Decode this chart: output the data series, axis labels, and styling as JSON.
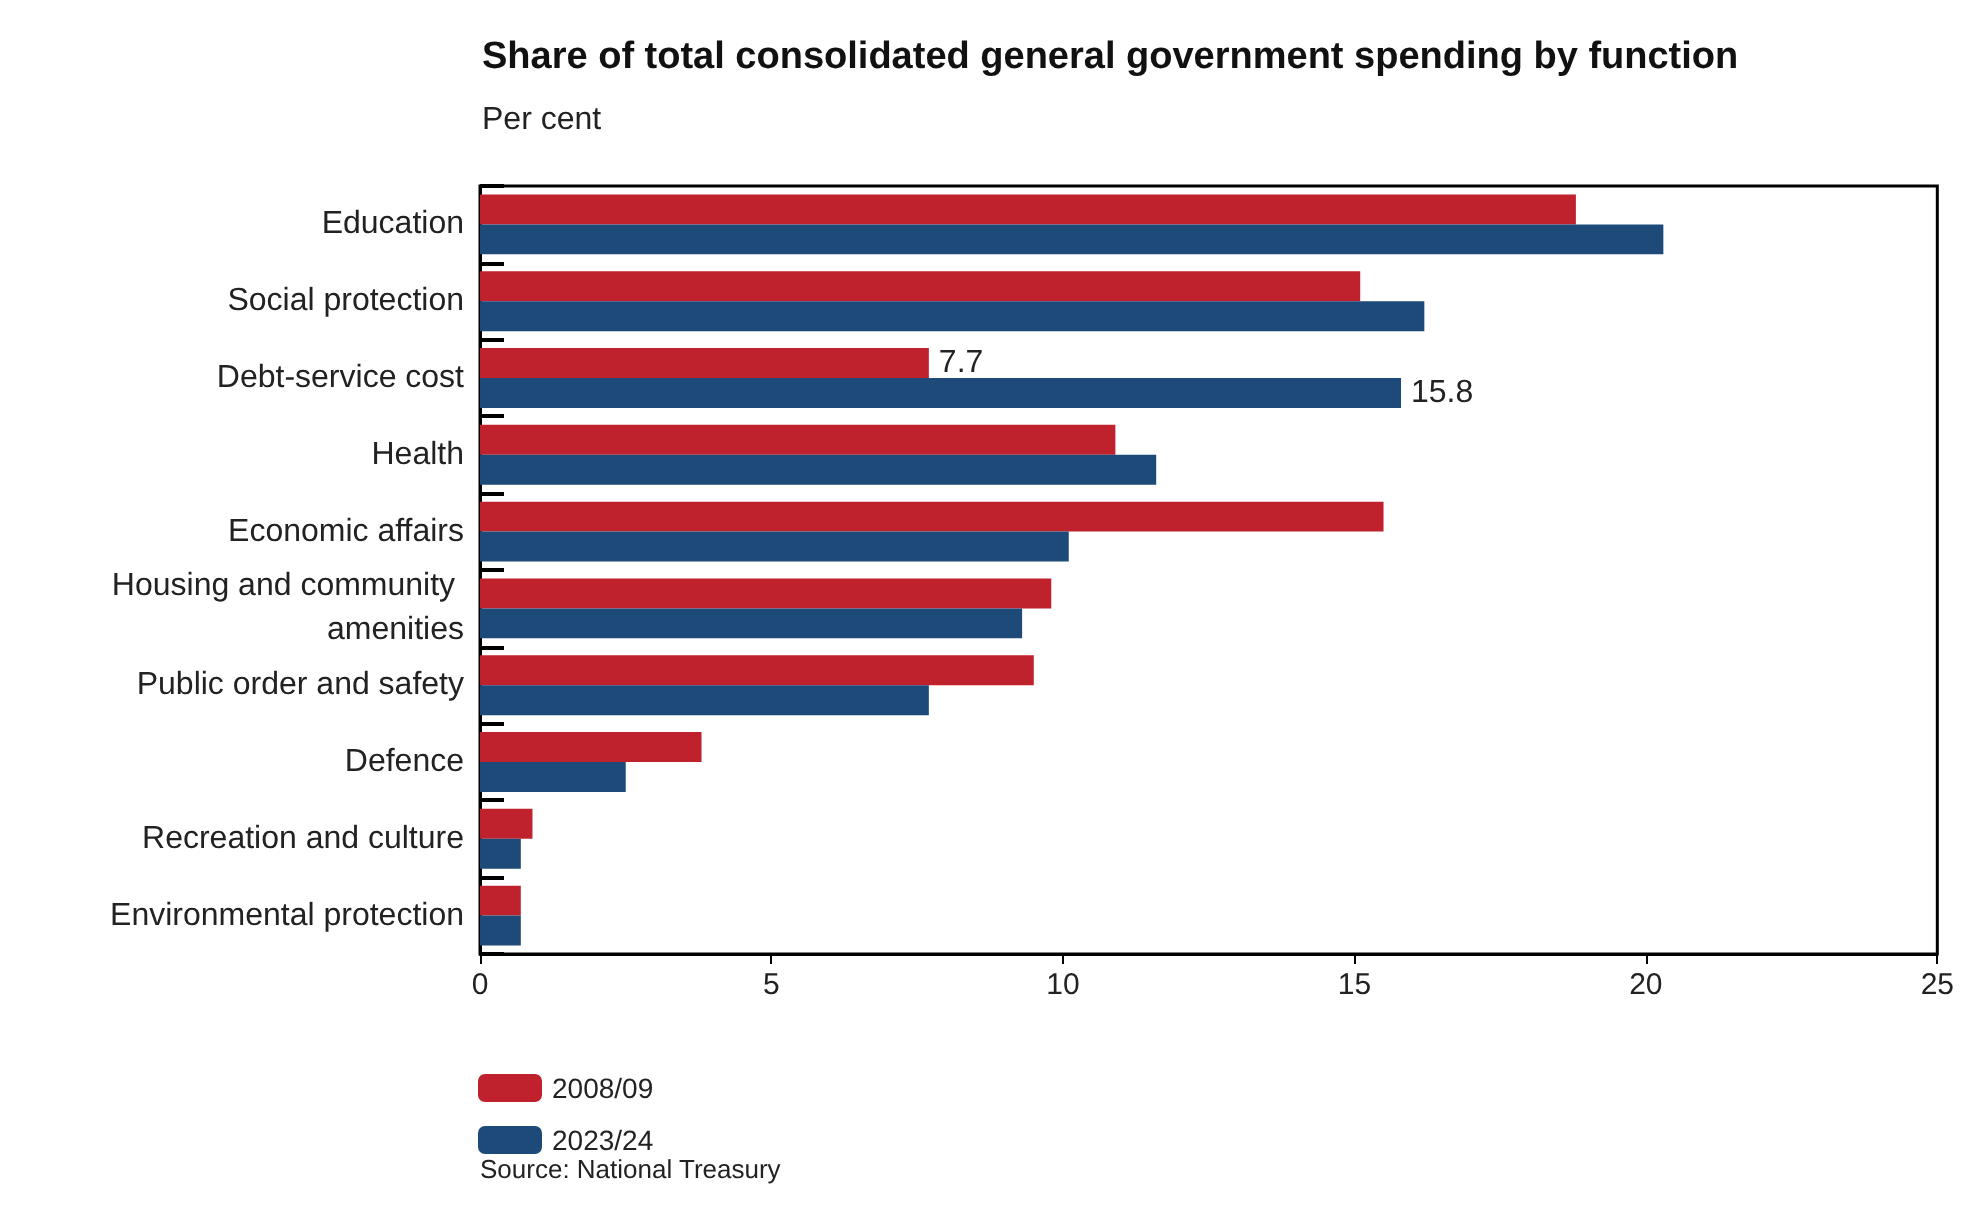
{
  "chart_data": {
    "type": "bar",
    "orientation": "horizontal",
    "title": "Share of total consolidated general government spending by function",
    "subtitle": "Per cent",
    "categories": [
      "Education",
      "Social protection",
      "Debt-service cost",
      "Health",
      "Economic affairs",
      "Housing and community amenities",
      "Public order and safety",
      "Defence",
      "Recreation and culture",
      "Environmental protection"
    ],
    "series": [
      {
        "name": "2008/09",
        "color": "#c0222d",
        "values": [
          18.8,
          15.1,
          7.7,
          10.9,
          15.5,
          9.8,
          9.5,
          3.8,
          0.9,
          0.7
        ],
        "value_labels": [
          null,
          null,
          "7.7",
          null,
          null,
          null,
          null,
          null,
          null,
          null
        ]
      },
      {
        "name": "2023/24",
        "color": "#1d4a78",
        "values": [
          20.3,
          16.2,
          15.8,
          11.6,
          10.1,
          9.3,
          7.7,
          2.5,
          0.7,
          0.7
        ],
        "value_labels": [
          null,
          null,
          "15.8",
          null,
          null,
          null,
          null,
          null,
          null,
          null
        ]
      }
    ],
    "xlim": [
      0,
      25
    ],
    "xticks": [
      0,
      5,
      10,
      15,
      20,
      25
    ],
    "grid": false,
    "legend": "bottom left",
    "annotations": [
      "Source: National Treasury"
    ]
  }
}
